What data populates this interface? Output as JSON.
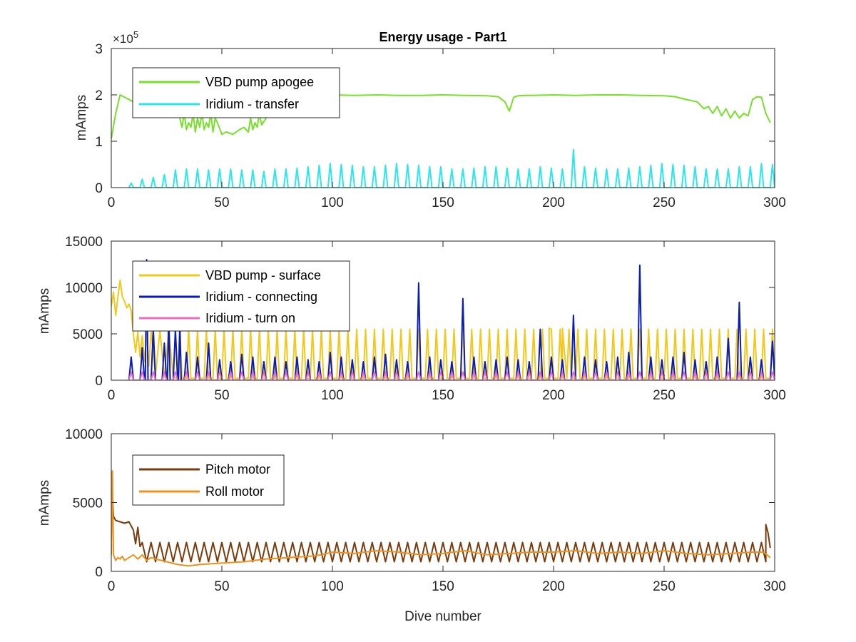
{
  "chart_data": [
    {
      "type": "line",
      "title": "Energy usage - Part1",
      "ylabel": "mAmps",
      "xlabel": "",
      "xlim": [
        0,
        300
      ],
      "ylim": [
        0,
        300000
      ],
      "exponent_label": "×10",
      "exponent_power": "5",
      "xticks": [
        0,
        50,
        100,
        150,
        200,
        250,
        300
      ],
      "xtick_labels": [
        "0",
        "50",
        "100",
        "150",
        "200",
        "250",
        "300"
      ],
      "yticks": [
        0,
        100000,
        200000,
        300000
      ],
      "ytick_labels": [
        "0",
        "1",
        "2",
        "3"
      ],
      "legend_position": "top-left",
      "series": [
        {
          "name": "VBD pump apogee",
          "color": "#77e02a",
          "x": [
            0,
            2,
            4,
            6,
            8,
            10,
            12,
            15,
            18,
            20,
            25,
            30,
            31,
            32,
            33,
            34,
            35,
            36,
            37,
            38,
            39,
            40,
            41,
            42,
            43,
            44,
            45,
            46,
            47,
            48,
            50,
            52,
            55,
            58,
            60,
            62,
            63,
            64,
            65,
            66,
            67,
            68,
            70,
            72,
            74,
            78,
            80,
            90,
            100,
            110,
            120,
            130,
            140,
            150,
            160,
            170,
            175,
            178,
            180,
            181,
            182,
            184,
            188,
            190,
            200,
            210,
            220,
            230,
            240,
            250,
            255,
            260,
            265,
            268,
            270,
            272,
            274,
            276,
            278,
            280,
            282,
            284,
            286,
            288,
            290,
            292,
            294,
            296,
            298
          ],
          "y": [
            105000,
            160000,
            200000,
            195000,
            190000,
            185000,
            185000,
            198000,
            199000,
            200000,
            200000,
            200000,
            150000,
            130000,
            160000,
            125000,
            140000,
            130000,
            160000,
            120000,
            150000,
            130000,
            160000,
            125000,
            140000,
            130000,
            160000,
            120000,
            150000,
            140000,
            115000,
            120000,
            115000,
            125000,
            130000,
            120000,
            150000,
            125000,
            140000,
            130000,
            160000,
            135000,
            150000,
            195000,
            198000,
            200000,
            199000,
            200000,
            200000,
            199000,
            200000,
            199000,
            199000,
            200000,
            199000,
            198000,
            196000,
            185000,
            165000,
            180000,
            195000,
            198000,
            199000,
            199000,
            200000,
            199000,
            200000,
            200000,
            199000,
            198000,
            196000,
            190000,
            185000,
            170000,
            175000,
            160000,
            175000,
            155000,
            170000,
            150000,
            165000,
            150000,
            160000,
            155000,
            190000,
            196000,
            195000,
            160000,
            140000
          ]
        },
        {
          "name": "Iridium - transfer",
          "color": "#2ce6ee",
          "spike_start": 8,
          "spike_end": 298,
          "spike_period": 5,
          "spike_values": [
            10000,
            18000,
            22000,
            28000,
            38000,
            40000,
            40000,
            38000,
            40000,
            40000,
            38000,
            38000,
            35000,
            40000,
            40000,
            42000,
            45000,
            48000,
            52000,
            50000,
            48000,
            45000,
            45000,
            48000,
            52000,
            50000,
            48000,
            45000,
            45000,
            40000,
            40000,
            42000,
            45000,
            45000,
            42000,
            40000,
            40000,
            45000,
            42000,
            40000,
            82000,
            45000,
            42000,
            40000,
            40000,
            42000,
            45000,
            48000,
            52000,
            50000,
            48000,
            45000,
            40000,
            40000,
            40000,
            45000,
            45000,
            52000,
            50000
          ]
        }
      ]
    },
    {
      "type": "line",
      "title": "",
      "ylabel": "mAmps",
      "xlabel": "",
      "xlim": [
        0,
        300
      ],
      "ylim": [
        0,
        15000
      ],
      "xticks": [
        0,
        50,
        100,
        150,
        200,
        250,
        300
      ],
      "xtick_labels": [
        "0",
        "50",
        "100",
        "150",
        "200",
        "250",
        "300"
      ],
      "yticks": [
        0,
        5000,
        10000,
        15000
      ],
      "ytick_labels": [
        "0",
        "5000",
        "10000",
        "15000"
      ],
      "legend_position": "top-left",
      "series": [
        {
          "name": "VBD pump - surface",
          "color": "#f2c81c",
          "x": [
            0,
            1,
            2,
            3,
            4,
            5,
            6,
            7,
            8,
            9,
            10,
            11,
            12,
            13,
            14,
            15,
            16,
            17,
            18,
            20,
            22,
            24,
            26,
            28
          ],
          "y": [
            8000,
            9500,
            7000,
            9000,
            10800,
            9000,
            8500,
            7800,
            8200,
            7500,
            5000,
            3000,
            5200,
            2500,
            4800,
            2000,
            5000,
            1500,
            5300,
            500,
            5400,
            300,
            5400,
            300
          ],
          "spike_start": 30,
          "spike_end": 298,
          "spike_period": 4,
          "spike_base": 200,
          "spike_values": [
            5500
          ],
          "flat_segments": [
            [
              198,
              5600
            ],
            [
              204,
              5600
            ]
          ]
        },
        {
          "name": "Iridium - connecting",
          "color": "#0a1cb4",
          "spike_start": 8,
          "spike_end": 298,
          "spike_period": 5,
          "spike_values": [
            2500,
            3500,
            5500,
            4000,
            5500,
            3000,
            2500,
            4000,
            2200,
            2000,
            2800,
            2500,
            2000,
            2500,
            2000,
            2500,
            2200,
            2000,
            3000,
            2500,
            2200,
            2000,
            2500,
            2800,
            2200,
            2000,
            10500,
            2500,
            2200,
            2000,
            8800,
            2500,
            2000,
            2200,
            2500,
            2200,
            2000,
            5500,
            2500,
            2200,
            7000,
            2500,
            2200,
            2000,
            2500,
            3000,
            12400,
            2500,
            2200,
            2500,
            3000,
            2200,
            2000,
            2500,
            4500,
            8400,
            2500,
            2200,
            4200
          ],
          "extra_points": [
            [
              16,
              13000
            ],
            [
              26,
              7000
            ],
            [
              31,
              6000
            ]
          ]
        },
        {
          "name": "Iridium - turn on",
          "color": "#e86cc0",
          "spike_start": 8,
          "spike_end": 298,
          "spike_period": 5,
          "spike_values": [
            900
          ]
        }
      ]
    },
    {
      "type": "line",
      "title": "",
      "ylabel": "mAmps",
      "xlabel": "Dive number",
      "xlim": [
        0,
        300
      ],
      "ylim": [
        0,
        10000
      ],
      "xticks": [
        0,
        50,
        100,
        150,
        200,
        250,
        300
      ],
      "xtick_labels": [
        "0",
        "50",
        "100",
        "150",
        "200",
        "250",
        "300"
      ],
      "yticks": [
        0,
        5000,
        10000
      ],
      "ytick_labels": [
        "0",
        "5000",
        "10000"
      ],
      "legend_position": "top-left",
      "series": [
        {
          "name": "Pitch motor",
          "color": "#7a3c0c",
          "x": [
            0,
            1,
            2,
            4,
            6,
            8,
            10,
            11,
            12,
            13
          ],
          "y": [
            7200,
            4000,
            3700,
            3600,
            3500,
            3600,
            3000,
            2000,
            3200,
            1800
          ],
          "osc_start": 14,
          "osc_end": 296,
          "osc_period": 4,
          "osc_low": 700,
          "osc_high": 2100,
          "tail_x": [
            296,
            297,
            298
          ],
          "tail_y": [
            3400,
            2800,
            1700
          ]
        },
        {
          "name": "Roll motor",
          "color": "#f0901c",
          "x": [
            0,
            0.5,
            1,
            2,
            3,
            4,
            5,
            6,
            8,
            10,
            12,
            14,
            16,
            18,
            20,
            25,
            30,
            35,
            40,
            50,
            60,
            70,
            80,
            90,
            95,
            100,
            110,
            120,
            130,
            140,
            150,
            160,
            170,
            180,
            190,
            200,
            210,
            220,
            230,
            240,
            250,
            260,
            270,
            280,
            290,
            295,
            298
          ],
          "y": [
            1200,
            7300,
            1200,
            800,
            1000,
            900,
            1100,
            800,
            1000,
            1200,
            900,
            1200,
            800,
            1000,
            900,
            700,
            500,
            400,
            500,
            600,
            700,
            900,
            1000,
            1100,
            1200,
            1400,
            1300,
            1500,
            1400,
            1200,
            1300,
            1500,
            1200,
            1300,
            1400,
            1400,
            1500,
            1300,
            1400,
            1300,
            1500,
            1300,
            1200,
            1300,
            1400,
            1400,
            1000
          ]
        }
      ]
    }
  ]
}
